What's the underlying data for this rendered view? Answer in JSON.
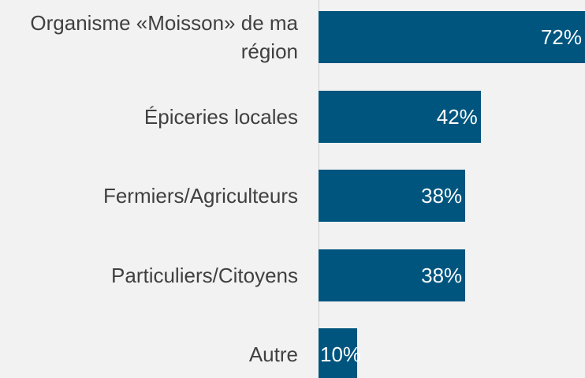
{
  "chart_data": {
    "type": "bar",
    "orientation": "horizontal",
    "categories": [
      "Organisme «Moisson» de ma région",
      "Épiceries locales",
      "Fermiers/Agriculteurs",
      "Particuliers/Citoyens",
      "Autre"
    ],
    "values": [
      72,
      42,
      38,
      38,
      10
    ],
    "value_labels": [
      "72%",
      "42%",
      "38%",
      "38%",
      "10%"
    ],
    "color": "#00557f"
  }
}
